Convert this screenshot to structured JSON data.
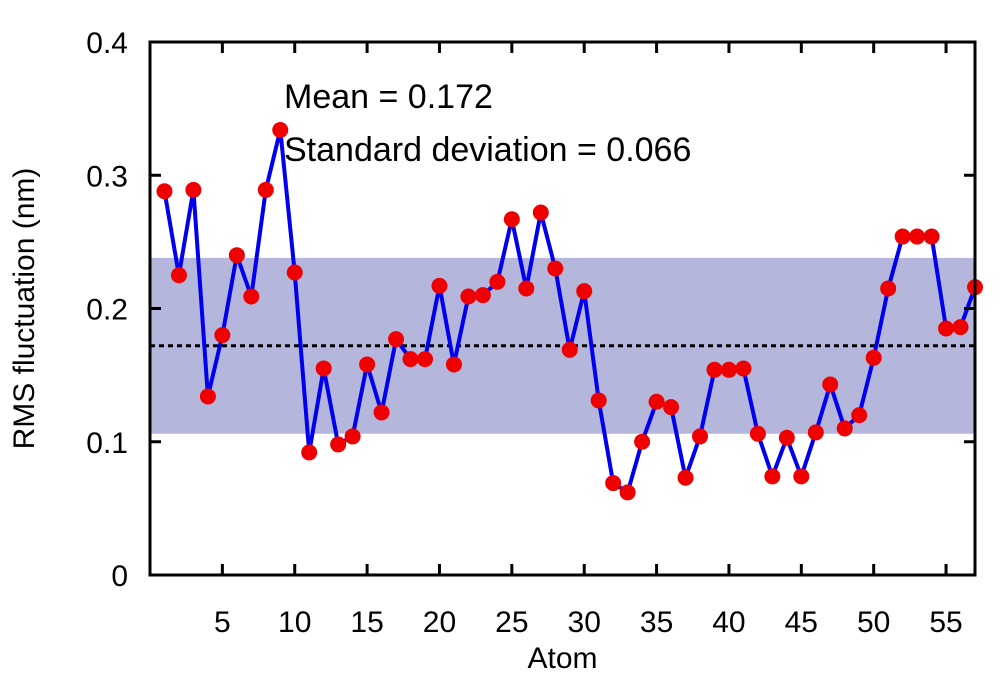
{
  "chart_data": {
    "type": "line",
    "xlabel": "Atom",
    "ylabel": "RMS fluctuation (nm)",
    "xlim": [
      0,
      57
    ],
    "ylim": [
      0,
      0.4
    ],
    "xticks": [
      5,
      10,
      15,
      20,
      25,
      30,
      35,
      40,
      45,
      50,
      55
    ],
    "yticks": [
      0,
      0.1,
      0.2,
      0.3,
      0.4
    ],
    "ytick_labels": [
      "0",
      "0.1",
      "0.2",
      "0.3",
      "0.4"
    ],
    "annotations": [
      "Mean = 0.172",
      "Standard deviation = 0.066"
    ],
    "mean": 0.172,
    "std": 0.066,
    "band": [
      0.106,
      0.238
    ],
    "colors": {
      "line": "#0000ee",
      "marker": "#ee0000",
      "band": "#b4b6dc",
      "mean_line": "#000000"
    },
    "series": [
      {
        "x": [
          1,
          2,
          3,
          4,
          5,
          6,
          7,
          8,
          9,
          10,
          11,
          12,
          13,
          14,
          15,
          16,
          17,
          18,
          19,
          20,
          21,
          22,
          23,
          24,
          25,
          26,
          27,
          28,
          29,
          30,
          31,
          32,
          33,
          34,
          35,
          36,
          37,
          38,
          39,
          40,
          41,
          42,
          43,
          44,
          45,
          46,
          47,
          48,
          49,
          50,
          51,
          52,
          53,
          54,
          55,
          56,
          57
        ],
        "values": [
          0.288,
          0.225,
          0.289,
          0.134,
          0.18,
          0.24,
          0.209,
          0.289,
          0.334,
          0.227,
          0.092,
          0.155,
          0.098,
          0.104,
          0.158,
          0.122,
          0.177,
          0.162,
          0.162,
          0.217,
          0.158,
          0.209,
          0.21,
          0.22,
          0.267,
          0.215,
          0.272,
          0.23,
          0.169,
          0.213,
          0.131,
          0.069,
          0.062,
          0.1,
          0.13,
          0.126,
          0.073,
          0.104,
          0.154,
          0.154,
          0.155,
          0.106,
          0.074,
          0.103,
          0.074,
          0.107,
          0.143,
          0.11,
          0.12,
          0.163,
          0.215,
          0.254,
          0.254,
          0.254,
          0.185,
          0.186,
          0.216
        ]
      }
    ]
  }
}
